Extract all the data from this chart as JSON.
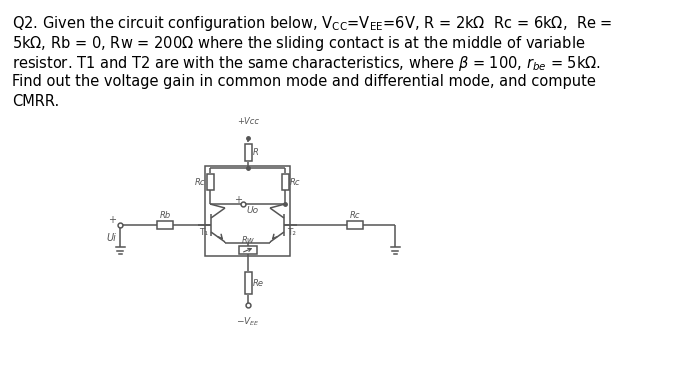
{
  "bg_color": "#ffffff",
  "text_color": "#000000",
  "lc": "#555555",
  "problem_lines": [
    [
      "Q2. Given the circuit configuration below, V",
      "CC",
      "=V",
      "EE",
      "=6V, R = 2kΩ  Rc = 6kΩ,  Re ="
    ],
    [
      "5kΩ, Rb = 0, Rw = 200Ω where the sliding contact is at the middle of variable"
    ],
    [
      "resistor. T1 and T2 are with the same characteristics, where β = 100, r",
      "be",
      " = 5kΩ."
    ],
    [
      "Find out the voltage gain in common mode and differential mode, and compute"
    ],
    [
      "CMRR."
    ]
  ]
}
